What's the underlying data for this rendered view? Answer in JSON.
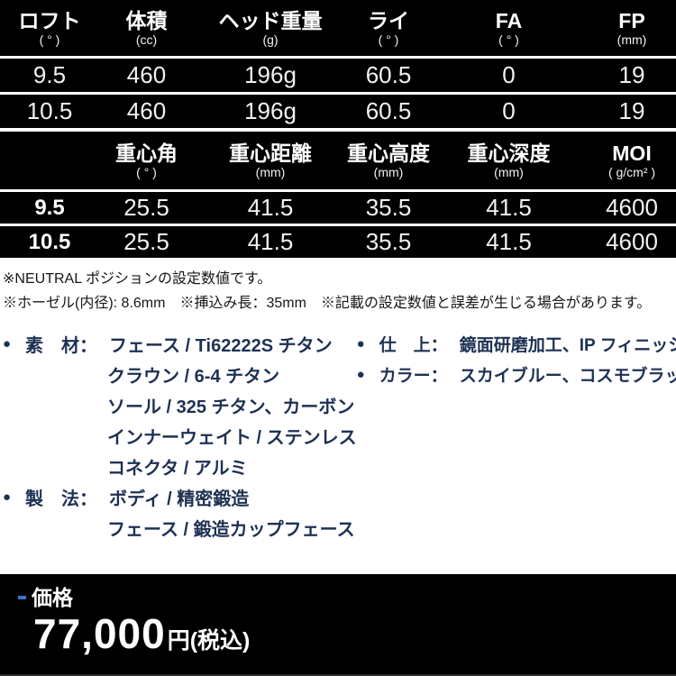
{
  "colors": {
    "table_bg": "#000000",
    "separator_white": "#ffffff",
    "navy_text": "#1d3153",
    "note_text": "#161616",
    "price_bg": "#000000",
    "dash_blue": "#3b74c4"
  },
  "tables": [
    {
      "name": "head-specs",
      "columns": [
        {
          "label": "ロフト",
          "unit": "( ° )"
        },
        {
          "label": "体積",
          "unit": "(cc)"
        },
        {
          "label": "ヘッド重量",
          "unit": "(g)"
        },
        {
          "label": "ライ",
          "unit": "( ° )"
        },
        {
          "label": "FA",
          "unit": "( ° )"
        },
        {
          "label": "FP",
          "unit": "(mm)"
        }
      ],
      "bold_first_col": false,
      "rows": [
        [
          "9.5",
          "460",
          "196g",
          "60.5",
          "0",
          "19"
        ],
        [
          "10.5",
          "460",
          "196g",
          "60.5",
          "0",
          "19"
        ]
      ]
    },
    {
      "name": "center-of-gravity-specs",
      "columns": [
        {
          "label": "",
          "unit": ""
        },
        {
          "label": "重心角",
          "unit": "( ° )"
        },
        {
          "label": "重心距離",
          "unit": "(mm)"
        },
        {
          "label": "重心高度",
          "unit": "(mm)"
        },
        {
          "label": "重心深度",
          "unit": "(mm)"
        },
        {
          "label": "MOI",
          "unit": "( g/cm² )"
        }
      ],
      "bold_first_col": true,
      "rows": [
        [
          "9.5",
          "25.5",
          "41.5",
          "35.5",
          "41.5",
          "4600"
        ],
        [
          "10.5",
          "25.5",
          "41.5",
          "35.5",
          "41.5",
          "4600"
        ]
      ]
    }
  ],
  "notes": [
    "※NEUTRAL ポジションの設定数値です。",
    "※ホーゼル(内径): 8.6mm　※挿込み長：35mm　※記載の設定数値と誤差が生じる場合があります。"
  ],
  "spec_sections": {
    "left": [
      {
        "bullet": "●",
        "label": "素　材：",
        "text": "フェース / Ti62222S チタン"
      },
      {
        "text": "クラウン / 6-4 チタン"
      },
      {
        "text": "ソール / 325 チタン、カーボン"
      },
      {
        "text": "インナーウェイト / ステンレス"
      },
      {
        "text": "コネクタ / アルミ"
      },
      {
        "bullet": "●",
        "label": "製　法：",
        "text": "ボディ / 精密鍛造"
      },
      {
        "text": "フェース / 鍛造カップフェース"
      }
    ],
    "right": [
      {
        "bullet": "●",
        "label": "仕　上：",
        "text": "鏡面研磨加工、IP フィニッシュ"
      },
      {
        "bullet": "●",
        "label": "カラー：",
        "text": "スカイブルー、コスモブラック"
      }
    ]
  },
  "price": {
    "label": "価格",
    "amount": "77,000",
    "unit": "円(税込)"
  }
}
